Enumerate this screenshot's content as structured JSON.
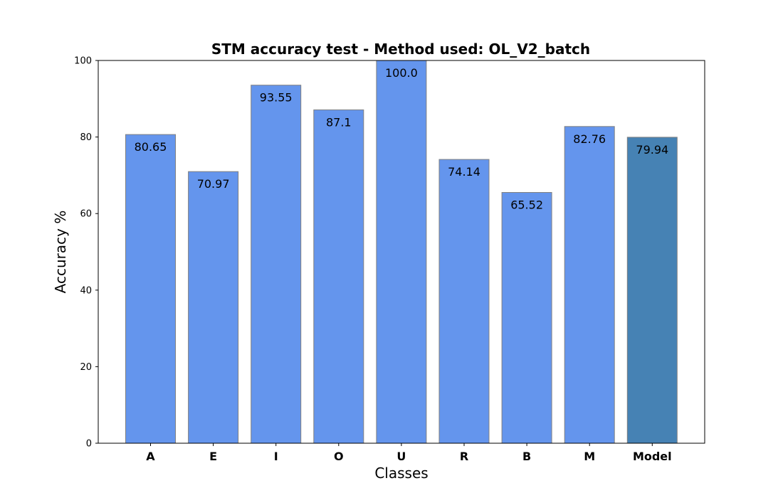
{
  "chart_data": {
    "type": "bar",
    "title": "STM accuracy test - Method used: OL_V2_batch",
    "xlabel": "Classes",
    "ylabel": "Accuracy %",
    "ylim": [
      0,
      100
    ],
    "yticks": [
      0,
      20,
      40,
      60,
      80,
      100
    ],
    "categories": [
      "A",
      "E",
      "I",
      "O",
      "U",
      "R",
      "B",
      "M",
      "Model"
    ],
    "values": [
      80.65,
      70.97,
      93.55,
      87.1,
      100.0,
      74.14,
      65.52,
      82.76,
      79.94
    ],
    "value_labels": [
      "80.65",
      "70.97",
      "93.55",
      "87.1",
      "100.0",
      "74.14",
      "65.52",
      "82.76",
      "79.94"
    ],
    "bar_colors": [
      "#6495ED",
      "#6495ED",
      "#6495ED",
      "#6495ED",
      "#6495ED",
      "#6495ED",
      "#6495ED",
      "#6495ED",
      "#4682B4"
    ],
    "grid": false,
    "legend": "none"
  }
}
